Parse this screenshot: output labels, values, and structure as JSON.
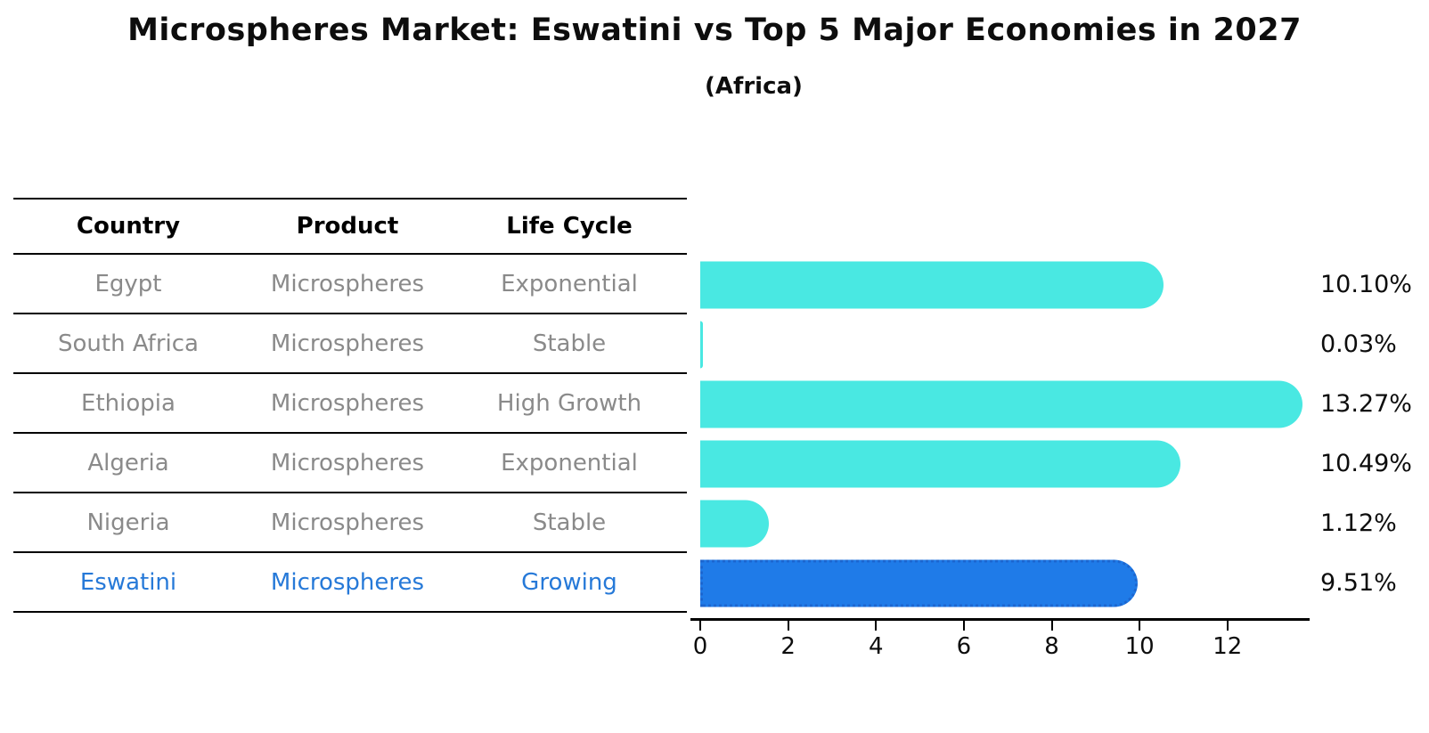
{
  "header": {
    "title": "Microspheres Market: Eswatini vs Top 5 Major Economies in 2027",
    "subtitle": "(Africa)"
  },
  "table": {
    "columns": [
      "Country",
      "Product",
      "Life Cycle"
    ],
    "rows": [
      {
        "country": "Egypt",
        "product": "Microspheres",
        "life_cycle": "Exponential"
      },
      {
        "country": "South Africa",
        "product": "Microspheres",
        "life_cycle": "Stable"
      },
      {
        "country": "Ethiopia",
        "product": "Microspheres",
        "life_cycle": "High Growth"
      },
      {
        "country": "Algeria",
        "product": "Microspheres",
        "life_cycle": "Exponential"
      },
      {
        "country": "Nigeria",
        "product": "Microspheres",
        "life_cycle": "Stable"
      },
      {
        "country": "Eswatini",
        "product": "Microspheres",
        "life_cycle": "Growing"
      }
    ]
  },
  "chart_data": {
    "type": "bar",
    "orientation": "horizontal",
    "title": "Microspheres Market: Eswatini vs Top 5 Major Economies in 2027",
    "subtitle": "(Africa)",
    "categories": [
      "Egypt",
      "South Africa",
      "Ethiopia",
      "Algeria",
      "Nigeria",
      "Eswatini"
    ],
    "values": [
      10.1,
      0.03,
      13.27,
      10.49,
      1.12,
      9.51
    ],
    "value_labels": [
      "10.10%",
      "0.03%",
      "13.27%",
      "10.49%",
      "1.12%",
      "9.51%"
    ],
    "value_suffix": "%",
    "xlim": [
      0,
      13.87
    ],
    "x_ticks": [
      0,
      2,
      4,
      6,
      8,
      10,
      12
    ],
    "grid": false,
    "legend": false,
    "highlight_index": 5
  },
  "colors": {
    "bar": "#49E8E2",
    "highlight_bar": "#1F7BE8",
    "highlight_edge": "#1C66CF",
    "highlight_text": "#2679D8",
    "row_text": "#8A8A8A"
  }
}
